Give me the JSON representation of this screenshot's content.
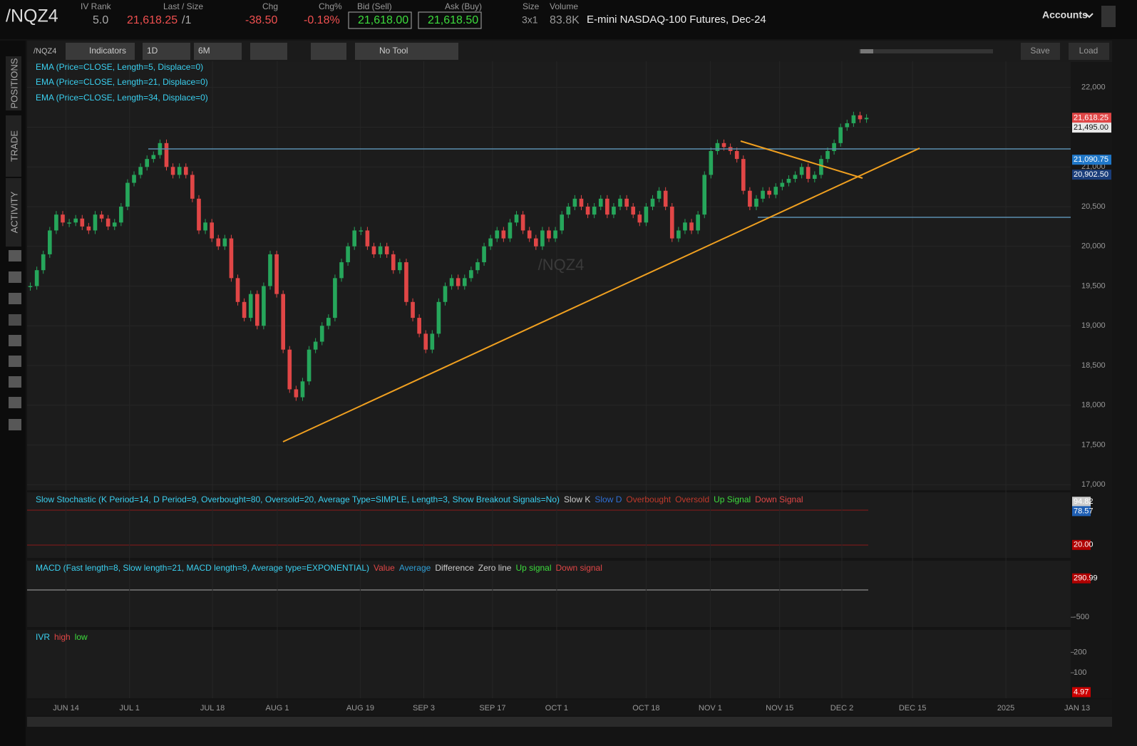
{
  "header": {
    "symbol": "/NQZ4",
    "iv_rank_label": "IV Rank",
    "iv_rank": "5.0",
    "last_label": "Last / Size",
    "last": "21,618.25",
    "size": "/1",
    "chg_label": "Chg",
    "chg": "-38.50",
    "chgpct_label": "Chg%",
    "chgpct": "-0.18%",
    "bid_label": "Bid (Sell)",
    "bid": "21,618.00",
    "ask_label": "Ask (Buy)",
    "ask": "21,618.50",
    "size_label": "Size",
    "size_value": "3x1",
    "volume_label": "Volume",
    "volume": "83.8K",
    "description": "E-mini NASDAQ-100 Futures, Dec-24",
    "accounts": "Accounts"
  },
  "toolbar": {
    "symbol": "/NQZ4",
    "indicators": "Indicators",
    "interval": "1D",
    "range": "6M",
    "tool": "No Tool",
    "save": "Save",
    "load": "Load"
  },
  "sidebar": [
    "POSITIONS",
    "TRADE",
    "ACTIVITY"
  ],
  "chart_data": {
    "type": "candlestick",
    "studies": [
      "EMA (Price=CLOSE, Length=5, Displace=0)",
      "EMA (Price=CLOSE, Length=21, Displace=0)",
      "EMA (Price=CLOSE, Length=34, Displace=0)"
    ],
    "watermark": "/NQZ4",
    "values": [
      19500,
      19700,
      19900,
      20200,
      20400,
      20300,
      20300,
      20350,
      20250,
      20200,
      20400,
      20350,
      20250,
      20300,
      20500,
      20800,
      20900,
      21000,
      21100,
      21150,
      21300,
      21000,
      20900,
      21000,
      20900,
      20600,
      20200,
      20300,
      20100,
      20000,
      20100,
      19600,
      19300,
      19100,
      19400,
      19000,
      19500,
      19900,
      19400,
      18700,
      18200,
      18100,
      18300,
      18700,
      18800,
      19000,
      19100,
      19600,
      19800,
      20000,
      20200,
      20200,
      20000,
      19900,
      20000,
      19900,
      19700,
      19800,
      19300,
      19100,
      18900,
      18700,
      18900,
      19300,
      19500,
      19600,
      19500,
      19600,
      19700,
      19800,
      20000,
      20100,
      20200,
      20100,
      20300,
      20400,
      20200,
      20100,
      20000,
      20200,
      20100,
      20200,
      20400,
      20500,
      20600,
      20500,
      20400,
      20500,
      20600,
      20400,
      20500,
      20600,
      20500,
      20400,
      20300,
      20500,
      20600,
      20700,
      20500,
      20100,
      20200,
      20300,
      20200,
      20400,
      20900,
      21200,
      21300,
      21250,
      21200,
      21100,
      20700,
      20500,
      20600,
      20700,
      20650,
      20750,
      20800,
      20850,
      20900,
      21000,
      20850,
      20900,
      21100,
      21200,
      21300,
      21500,
      21550,
      21650,
      21600,
      21618.25
    ],
    "up_color": "#26a65b",
    "down_color": "#e04646",
    "xlim": [
      -0.5,
      160.5
    ],
    "xticks": [
      {
        "value": 5.5,
        "label": "JUN 14"
      },
      {
        "value": 15.3,
        "label": "JUL 1"
      },
      {
        "value": 28.1,
        "label": "JUL 18"
      },
      {
        "value": 38.1,
        "label": "AUG 1"
      },
      {
        "value": 50.9,
        "label": "AUG 19"
      },
      {
        "value": 60.7,
        "label": "SEP 3"
      },
      {
        "value": 71.3,
        "label": "SEP 17"
      },
      {
        "value": 81.2,
        "label": "OCT 1"
      },
      {
        "value": 95,
        "label": "OCT 18"
      },
      {
        "value": 104.9,
        "label": "NOV 1"
      },
      {
        "value": 115.6,
        "label": "NOV 15"
      },
      {
        "value": 125.2,
        "label": "DEC 2"
      },
      {
        "value": 136.1,
        "label": "DEC 15"
      },
      {
        "value": 150.5,
        "label": "2025"
      },
      {
        "value": 161.5,
        "label": "JAN 13"
      }
    ],
    "ylim": [
      16930,
      22330
    ],
    "yticks": [
      {
        "value": 22000,
        "label": "22,000"
      },
      {
        "value": 21500,
        "label": "21,500"
      },
      {
        "value": 21000,
        "label": "21,000"
      },
      {
        "value": 20500,
        "label": "20,500"
      },
      {
        "value": 20000,
        "label": "20,000"
      },
      {
        "value": 19500,
        "label": "19,500"
      },
      {
        "value": 19000,
        "label": "19,000"
      },
      {
        "value": 18500,
        "label": "18,500"
      },
      {
        "value": 18000,
        "label": "18,000"
      },
      {
        "value": 17500,
        "label": "17,500"
      },
      {
        "value": 17000,
        "label": "17,000"
      }
    ],
    "price_labels": [
      {
        "value": 21618.25,
        "label": "21,618.25",
        "color": "#e04646"
      },
      {
        "value": 21495,
        "label": "21,495.00",
        "color": "#e8e8e8"
      },
      {
        "value": 21090.75,
        "label": "21,090.75",
        "color": "#1f77c8"
      },
      {
        "value": 20902.5,
        "label": "20,902.50",
        "color": "#1a3d7a"
      }
    ]
  },
  "panels": [
    {
      "title": "Slow Stochastic (K Period=14, D Period=9, Overbought=80, Oversold=20, Average Type=SIMPLE, Length=3, Show Breakout Signals=No)",
      "legend": [
        {
          "name": "Slow K",
          "color": "#cccccc"
        },
        {
          "name": "Slow D",
          "color": "#2f6fd6"
        },
        {
          "name": "Overbought",
          "color": "#c0392b"
        },
        {
          "name": "Oversold",
          "color": "#c0392b"
        },
        {
          "name": "Up Signal",
          "color": "#3ddc3d"
        },
        {
          "name": "Down Signal",
          "color": "#e04646"
        }
      ],
      "ylim": [
        0,
        100
      ],
      "labels": [
        {
          "value": 94.82,
          "label": "94.82",
          "color": "#cccccc"
        },
        {
          "value": 78.57,
          "label": "78.57",
          "color": "#1f5fb4"
        },
        {
          "value": 20,
          "label": "20.00",
          "color": "#b00000"
        }
      ]
    },
    {
      "title": "MACD (Fast length=8, Slow length=21, MACD length=9, Average type=EXPONENTIAL)",
      "legend": [
        {
          "name": "Value",
          "color": "#e04646"
        },
        {
          "name": "Average",
          "color": "#2f9fd6"
        },
        {
          "name": "Difference",
          "color": "#cccccc"
        },
        {
          "name": "Zero line",
          "color": "#cccccc"
        },
        {
          "name": "Up signal",
          "color": "#3ddc3d"
        },
        {
          "name": "Down signal",
          "color": "#e04646"
        }
      ],
      "ylim": [
        -700,
        650
      ],
      "labels": [
        {
          "value": 290.99,
          "label": "290.99",
          "color": "#b00000"
        },
        {
          "value": -500,
          "label": "-500",
          "color": null
        }
      ]
    },
    {
      "title": "IVR",
      "legend": [
        {
          "name": "high",
          "color": "#e04646"
        },
        {
          "name": "low",
          "color": "#3ddc3d"
        }
      ],
      "ylim": [
        -25,
        310
      ],
      "labels": [
        {
          "value": 200,
          "label": "200",
          "color": null
        },
        {
          "value": 100,
          "label": "100",
          "color": null
        },
        {
          "value": 4.97,
          "label": "4.97",
          "color": "#cc0000"
        }
      ]
    }
  ]
}
